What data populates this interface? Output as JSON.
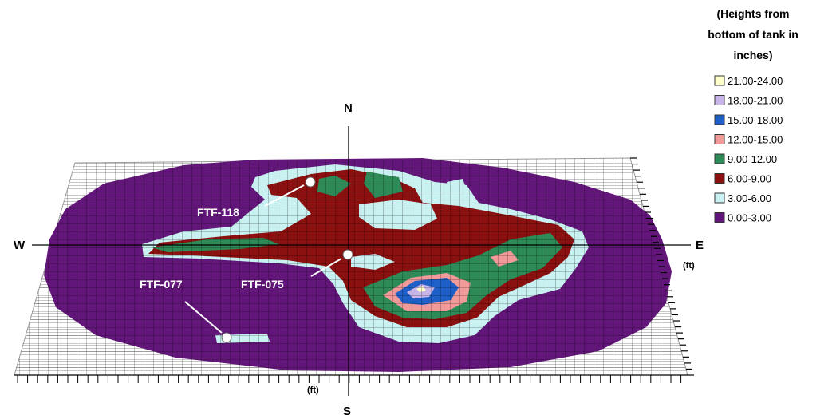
{
  "chart_data": {
    "type": "heatmap",
    "title": "",
    "legend": {
      "title_lines": [
        "(Heights from",
        "bottom of tank in",
        "inches)"
      ],
      "placement": "right",
      "entries": [
        {
          "label": "21.00-24.00",
          "color": "#ffffcc"
        },
        {
          "label": "18.00-21.00",
          "color": "#c7b5ea"
        },
        {
          "label": "15.00-18.00",
          "color": "#1f5fc8"
        },
        {
          "label": "12.00-15.00",
          "color": "#f19a9a"
        },
        {
          "label": "9.00-12.00",
          "color": "#2e8b57"
        },
        {
          "label": "6.00-9.00",
          "color": "#8b1010"
        },
        {
          "label": "3.00-6.00",
          "color": "#c9f1f1"
        },
        {
          "label": "0.00-3.00",
          "color": "#63167a"
        }
      ]
    },
    "compass": {
      "north": "N",
      "south": "S",
      "east": "E",
      "west": "W"
    },
    "axis_units": {
      "x": "(ft)",
      "y": "(ft)"
    },
    "sample_locations": [
      "FTF-118",
      "FTF-075",
      "FTF-077"
    ]
  }
}
